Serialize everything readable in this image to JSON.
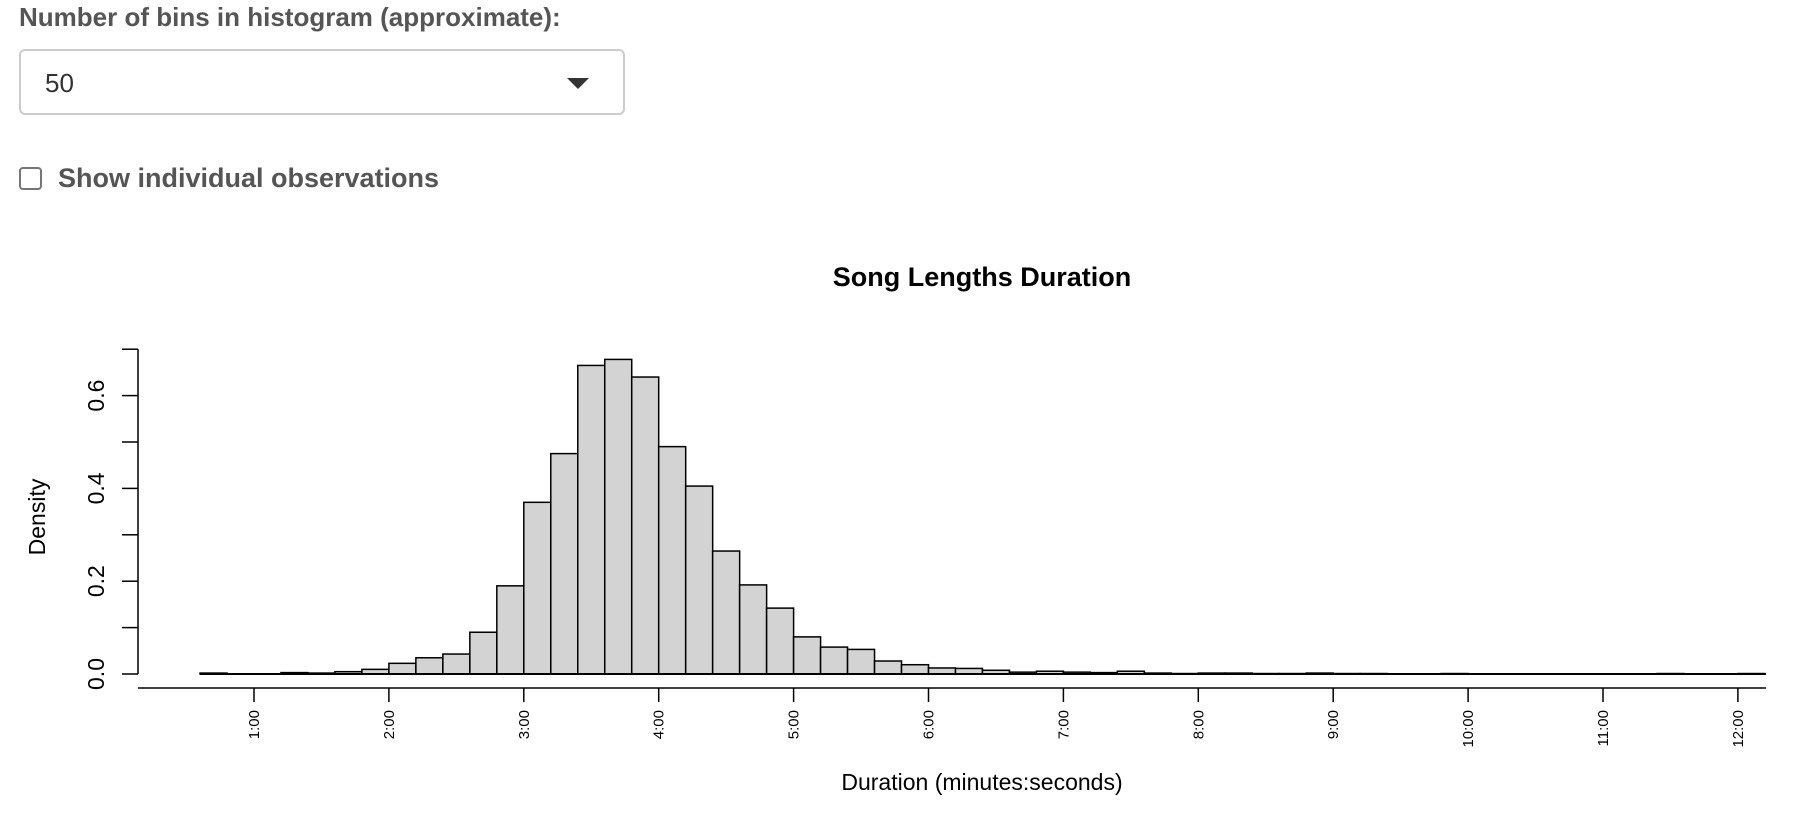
{
  "controls": {
    "bins_label": "Number of bins in histogram (approximate):",
    "bins_value": "50",
    "show_obs_label": "Show individual observations",
    "show_obs_checked": false
  },
  "chart_data": {
    "type": "bar",
    "title": "Song Lengths Duration",
    "xlabel": "Duration (minutes:seconds)",
    "ylabel": "Density",
    "x_unit": "minutes",
    "bin_width": 0.2,
    "bin_start": 0.6,
    "xlim": [
      0.6,
      12.2
    ],
    "ylim": [
      0,
      0.7
    ],
    "y_ticks": [
      0,
      0.2,
      0.4,
      0.6
    ],
    "y_tick_labels": [
      "0.0",
      "0.2",
      "0.4",
      "0.6"
    ],
    "x_ticks": [
      1,
      2,
      3,
      4,
      5,
      6,
      7,
      8,
      9,
      10,
      11,
      12
    ],
    "x_tick_labels": [
      "1:00",
      "2:00",
      "3:00",
      "4:00",
      "5:00",
      "6:00",
      "7:00",
      "8:00",
      "9:00",
      "10:00",
      "11:00",
      "12:00"
    ],
    "values": [
      0.002,
      0,
      0,
      0.003,
      0.002,
      0.005,
      0.01,
      0.023,
      0.035,
      0.043,
      0.09,
      0.19,
      0.37,
      0.475,
      0.665,
      0.678,
      0.64,
      0.49,
      0.405,
      0.265,
      0.192,
      0.142,
      0.08,
      0.058,
      0.053,
      0.028,
      0.02,
      0.013,
      0.012,
      0.008,
      0.004,
      0.006,
      0.004,
      0.003,
      0.006,
      0.002,
      0.001,
      0.002,
      0.002,
      0.001,
      0.001,
      0.002,
      0.001,
      0.001,
      0,
      0,
      0.001,
      0,
      0,
      0,
      0,
      0,
      0,
      0,
      0.001,
      0,
      0,
      0.001
    ],
    "colors": {
      "bar_fill": "#d3d3d3",
      "bar_stroke": "#000000"
    },
    "grid": false,
    "legend": "none"
  }
}
